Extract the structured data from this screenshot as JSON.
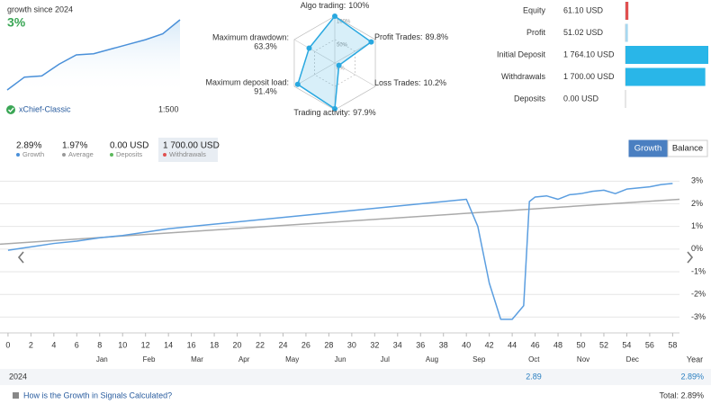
{
  "header": {
    "growth_label": "growth since 2024",
    "growth_value": "3%",
    "account": "xChief-Classic",
    "leverage": "1:500"
  },
  "mini_chart": {
    "type": "line",
    "values": [
      0,
      0.55,
      0.6,
      1.1,
      1.5,
      1.55,
      1.75,
      1.95,
      2.15,
      2.4,
      3.0
    ],
    "ylim": [
      0,
      3
    ],
    "color": "#4a90d9"
  },
  "radar": {
    "type": "radar",
    "axes": [
      {
        "name": "Algo trading:",
        "value": 100,
        "value_label": "100%"
      },
      {
        "name": "Profit Trades:",
        "value": 89.8,
        "value_label": "89.8%"
      },
      {
        "name": "Loss Trades:",
        "value": 10.2,
        "value_label": "10.2%"
      },
      {
        "name": "Trading activity:",
        "value": 97.9,
        "value_label": "97.9%"
      },
      {
        "name": "Maximum deposit load:",
        "value": 91.4,
        "value_label": "91.4%"
      },
      {
        "name": "Maximum drawdown:",
        "value": 63.3,
        "value_label": "63.3%"
      }
    ],
    "rings": [
      {
        "value": 100,
        "label": "100%"
      },
      {
        "value": 50,
        "label": "50%"
      },
      {
        "value": 0,
        "label": "0%"
      }
    ],
    "color": "#29a8e0"
  },
  "stats": [
    {
      "label": "Equity",
      "value": 61.1,
      "value_label": "61.10 USD",
      "color": "#e05050"
    },
    {
      "label": "Profit",
      "value": 51.02,
      "value_label": "51.02 USD",
      "color": "#a8d8f0"
    },
    {
      "label": "Initial Deposit",
      "value": 1764.1,
      "value_label": "1 764.10 USD",
      "color": "#29b6e8"
    },
    {
      "label": "Withdrawals",
      "value": 1700.0,
      "value_label": "1 700.00 USD",
      "color": "#29b6e8"
    },
    {
      "label": "Deposits",
      "value": 0.0,
      "value_label": "0.00 USD",
      "color": "#29b6e8"
    }
  ],
  "summary": [
    {
      "value": "2.89%",
      "label": "Growth",
      "color": "#4a90d9"
    },
    {
      "value": "1.97%",
      "label": "Average",
      "color": "#999999"
    },
    {
      "value": "0.00 USD",
      "label": "Deposits",
      "color": "#5cb85c"
    },
    {
      "value": "1 700.00 USD",
      "label": "Withdrawals",
      "color": "#e05050"
    }
  ],
  "tabs": [
    "Growth",
    "Balance"
  ],
  "chart_data": {
    "type": "line",
    "xlim": [
      -0.7,
      58.6
    ],
    "ylim": [
      -3.7,
      3.45
    ],
    "xticks": [
      0,
      2,
      4,
      6,
      8,
      10,
      12,
      14,
      16,
      18,
      20,
      22,
      24,
      26,
      28,
      30,
      32,
      34,
      36,
      38,
      40,
      42,
      44,
      46,
      48,
      50,
      52,
      54,
      56,
      58
    ],
    "month_ticks": [
      {
        "value": 8.2,
        "label": "Jan"
      },
      {
        "value": 12.3,
        "label": "Feb"
      },
      {
        "value": 16.5,
        "label": "Mar"
      },
      {
        "value": 20.6,
        "label": "Apr"
      },
      {
        "value": 24.8,
        "label": "May"
      },
      {
        "value": 29,
        "label": "Jun"
      },
      {
        "value": 32.9,
        "label": "Jul"
      },
      {
        "value": 37,
        "label": "Aug"
      },
      {
        "value": 41.1,
        "label": "Sep"
      },
      {
        "value": 45.9,
        "label": "Oct"
      },
      {
        "value": 50.2,
        "label": "Nov"
      },
      {
        "value": 54.5,
        "label": "Dec"
      }
    ],
    "yticks": [
      {
        "value": 3,
        "label": "3%"
      },
      {
        "value": 2,
        "label": "2%"
      },
      {
        "value": 1,
        "label": "1%"
      },
      {
        "value": 0,
        "label": "0%"
      },
      {
        "value": -1,
        "label": "-1%"
      },
      {
        "value": -2,
        "label": "-2%"
      },
      {
        "value": -3,
        "label": "-3%"
      }
    ],
    "grid": true,
    "series": [
      {
        "name": "Growth",
        "color": "#5b9ee0",
        "x": [
          0,
          2,
          4,
          6,
          8,
          10,
          12,
          14,
          16,
          18,
          20,
          22,
          24,
          26,
          28,
          30,
          32,
          34,
          36,
          38,
          40,
          41,
          42,
          43,
          44,
          45,
          45.5,
          46,
          47,
          48,
          49,
          50,
          51,
          52,
          53,
          54,
          55,
          56,
          57,
          58
        ],
        "values": [
          -0.05,
          0.1,
          0.25,
          0.35,
          0.5,
          0.6,
          0.75,
          0.9,
          1.0,
          1.1,
          1.2,
          1.3,
          1.4,
          1.5,
          1.6,
          1.7,
          1.8,
          1.9,
          2.0,
          2.1,
          2.2,
          1.0,
          -1.5,
          -3.1,
          -3.1,
          -2.5,
          2.1,
          2.3,
          2.35,
          2.2,
          2.4,
          2.45,
          2.55,
          2.6,
          2.45,
          2.65,
          2.7,
          2.75,
          2.85,
          2.9
        ]
      },
      {
        "name": "Average",
        "color": "#aaaaaa",
        "x": [
          -0.7,
          58.6
        ],
        "values": [
          0.22,
          2.2
        ]
      }
    ]
  },
  "year_row": {
    "label": "Year",
    "year": "2024",
    "month_value": "2.89",
    "year_value": "2.89%"
  },
  "footer": {
    "link": "How is the Growth in Signals Calculated?",
    "total": "Total: 2.89%"
  }
}
